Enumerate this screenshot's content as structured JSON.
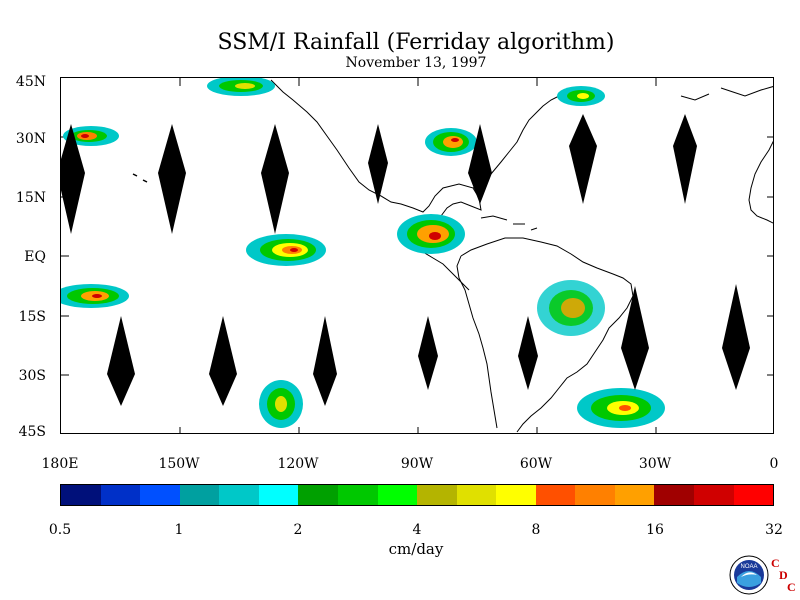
{
  "header": {
    "title": "SSM/I Rainfall (Ferriday algorithm)",
    "date": "November 13, 1997"
  },
  "map": {
    "lat_labels": [
      "45N",
      "30N",
      "15N",
      "EQ",
      "15S",
      "30S",
      "45S"
    ],
    "lon_labels": [
      "180E",
      "150W",
      "120W",
      "90W",
      "60W",
      "30W",
      "0"
    ],
    "background_color": "#ffffff",
    "coastline_color": "#000000",
    "gap_color": "#000000"
  },
  "colorbar": {
    "colors": [
      "#00107a",
      "#0030c8",
      "#0050ff",
      "#00a0a0",
      "#00c8c8",
      "#00ffff",
      "#00a000",
      "#00c800",
      "#00ff00",
      "#b4b400",
      "#e0e000",
      "#ffff00",
      "#ff5000",
      "#ff8000",
      "#ffa000",
      "#a00000",
      "#d00000",
      "#ff0000"
    ],
    "tick_labels": [
      "0.5",
      "1",
      "2",
      "4",
      "8",
      "16",
      "32"
    ],
    "units": "cm/day"
  },
  "logos": {
    "noaa_text": "NOAA",
    "cdc_letters": [
      "C",
      "D",
      "C"
    ]
  }
}
